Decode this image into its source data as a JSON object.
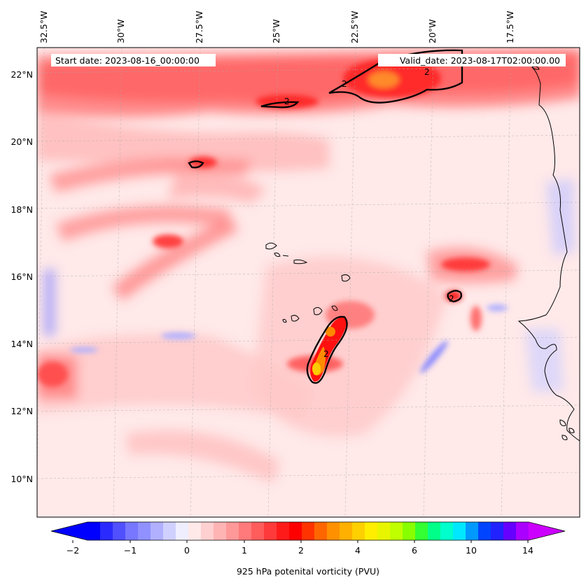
{
  "header": {
    "start_date": "Start date: 2023-08-16_00:00:00",
    "valid_date": "Valid_date: 2023-08-17T02:00:00.00"
  },
  "axes": {
    "lon_labels": [
      "32.5°W",
      "30°W",
      "27.5°W",
      "25°W",
      "22.5°W",
      "20°W",
      "17.5°W"
    ],
    "lat_labels": [
      "22°N",
      "20°N",
      "18°N",
      "16°N",
      "14°N",
      "12°N",
      "10°N"
    ]
  },
  "contour_label": "2",
  "colorbar": {
    "label": "925 hPa potenital vorticity (PVU)",
    "tick_labels": [
      "−2",
      "−1",
      "0",
      "1",
      "2",
      "4",
      "6",
      "10",
      "14"
    ],
    "colors": [
      "#0000ff",
      "#2a2aff",
      "#5050ff",
      "#7777ff",
      "#9090ff",
      "#b0b0ff",
      "#d0d0ff",
      "#eeeeff",
      "#ffe8e8",
      "#ffd0d0",
      "#ffb4b4",
      "#ff9898",
      "#ff7a7a",
      "#ff5c5c",
      "#ff3a3a",
      "#ff1a1a",
      "#ff0000",
      "#ff3300",
      "#ff6600",
      "#ff9100",
      "#ffb000",
      "#ffd000",
      "#ffee00",
      "#e8f500",
      "#c0ff00",
      "#88ff00",
      "#33ff33",
      "#00ff88",
      "#00ffcc",
      "#00e8ff",
      "#0099ff",
      "#0044ff",
      "#2222ff",
      "#6600ff",
      "#aa00ff"
    ],
    "extend_min_color": "#0000ff",
    "extend_max_color": "#cc00ff"
  },
  "legend_levels": [
    -2,
    -1,
    0,
    1,
    2,
    4,
    6,
    10,
    14
  ]
}
